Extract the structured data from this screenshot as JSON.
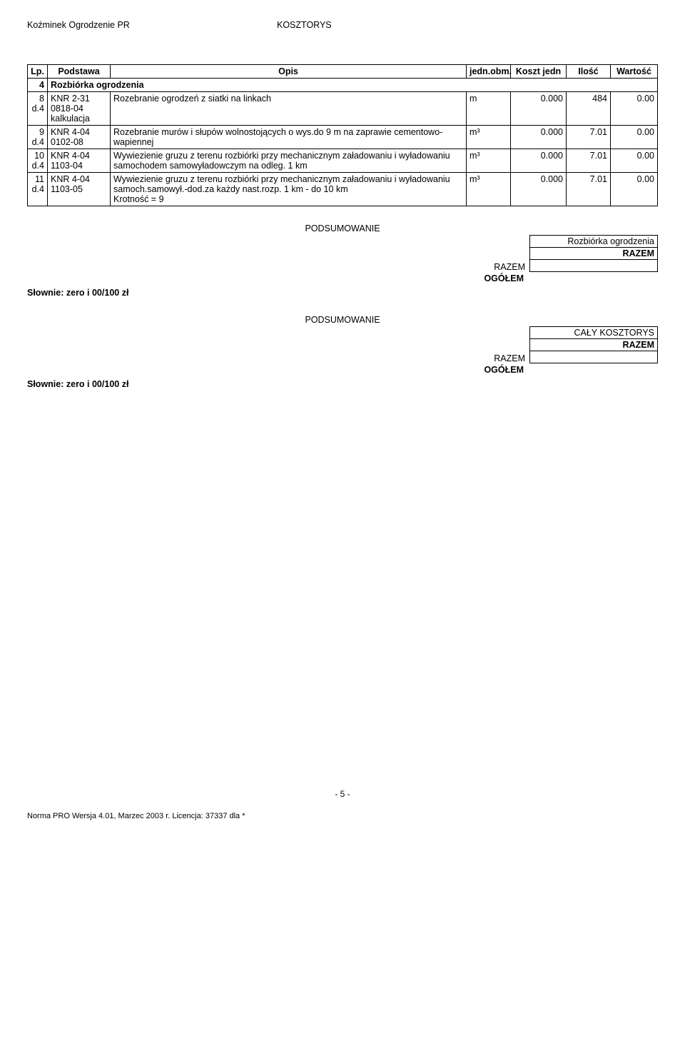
{
  "header": {
    "left": "Koźminek Ogrodzenie PR",
    "right": "KOSZTORYS"
  },
  "columns": {
    "lp": "Lp.",
    "podstawa": "Podstawa",
    "opis": "Opis",
    "jedn": "jedn.obm.",
    "koszt": "Koszt jedn",
    "ilosc": "Ilość",
    "wartosc": "Wartość"
  },
  "section": {
    "num": "4",
    "title": "Rozbiórka ogrodzenia"
  },
  "rows": [
    {
      "lp1": "8",
      "lp2": "d.4",
      "pod": "KNR 2-31\n0818-04\nkalkulacja",
      "opis": "Rozebranie ogrodzeń z siatki na linkach",
      "jedn": "m",
      "koszt": "0.000",
      "ilosc": "484",
      "wart": "0.00"
    },
    {
      "lp1": "9",
      "lp2": "d.4",
      "pod": "KNR 4-04\n0102-08",
      "opis": "Rozebranie murów i słupów wolnostojących o wys.do 9 m na zaprawie cementowo-wapiennej",
      "jedn": "m³",
      "koszt": "0.000",
      "ilosc": "7.01",
      "wart": "0.00"
    },
    {
      "lp1": "10",
      "lp2": "d.4",
      "pod": "KNR 4-04\n1103-04",
      "opis": "Wywiezienie gruzu z terenu rozbiórki przy mechanicznym załadowaniu i wyładowaniu samochodem samowyładowczym na odleg. 1 km",
      "jedn": "m³",
      "koszt": "0.000",
      "ilosc": "7.01",
      "wart": "0.00"
    },
    {
      "lp1": "11",
      "lp2": "d.4",
      "pod": "KNR 4-04\n1103-05",
      "opis": "Wywiezienie gruzu z terenu rozbiórki przy mechanicznym załadowaniu i wyładowaniu samoch.samowył.-dod.za każdy nast.rozp. 1 km - do 10 km\nKrotność = 9",
      "jedn": "m³",
      "koszt": "0.000",
      "ilosc": "7.01",
      "wart": "0.00"
    }
  ],
  "summary1": {
    "title": "PODSUMOWANIE",
    "caption": "Rozbiórka ogrodzenia",
    "razem_box": "RAZEM",
    "razem_left": "RAZEM",
    "ogolem": "OGÓŁEM",
    "slownie": "Słownie:  zero i 00/100 zł"
  },
  "summary2": {
    "title": "PODSUMOWANIE",
    "caption": "CAŁY KOSZTORYS",
    "razem_box": "RAZEM",
    "razem_left": "RAZEM",
    "ogolem": "OGÓŁEM",
    "slownie": "Słownie:  zero i 00/100 zł"
  },
  "page_num": "- 5 -",
  "footer": "Norma PRO Wersja 4.01, Marzec 2003 r. Licencja: 37337 dla *"
}
